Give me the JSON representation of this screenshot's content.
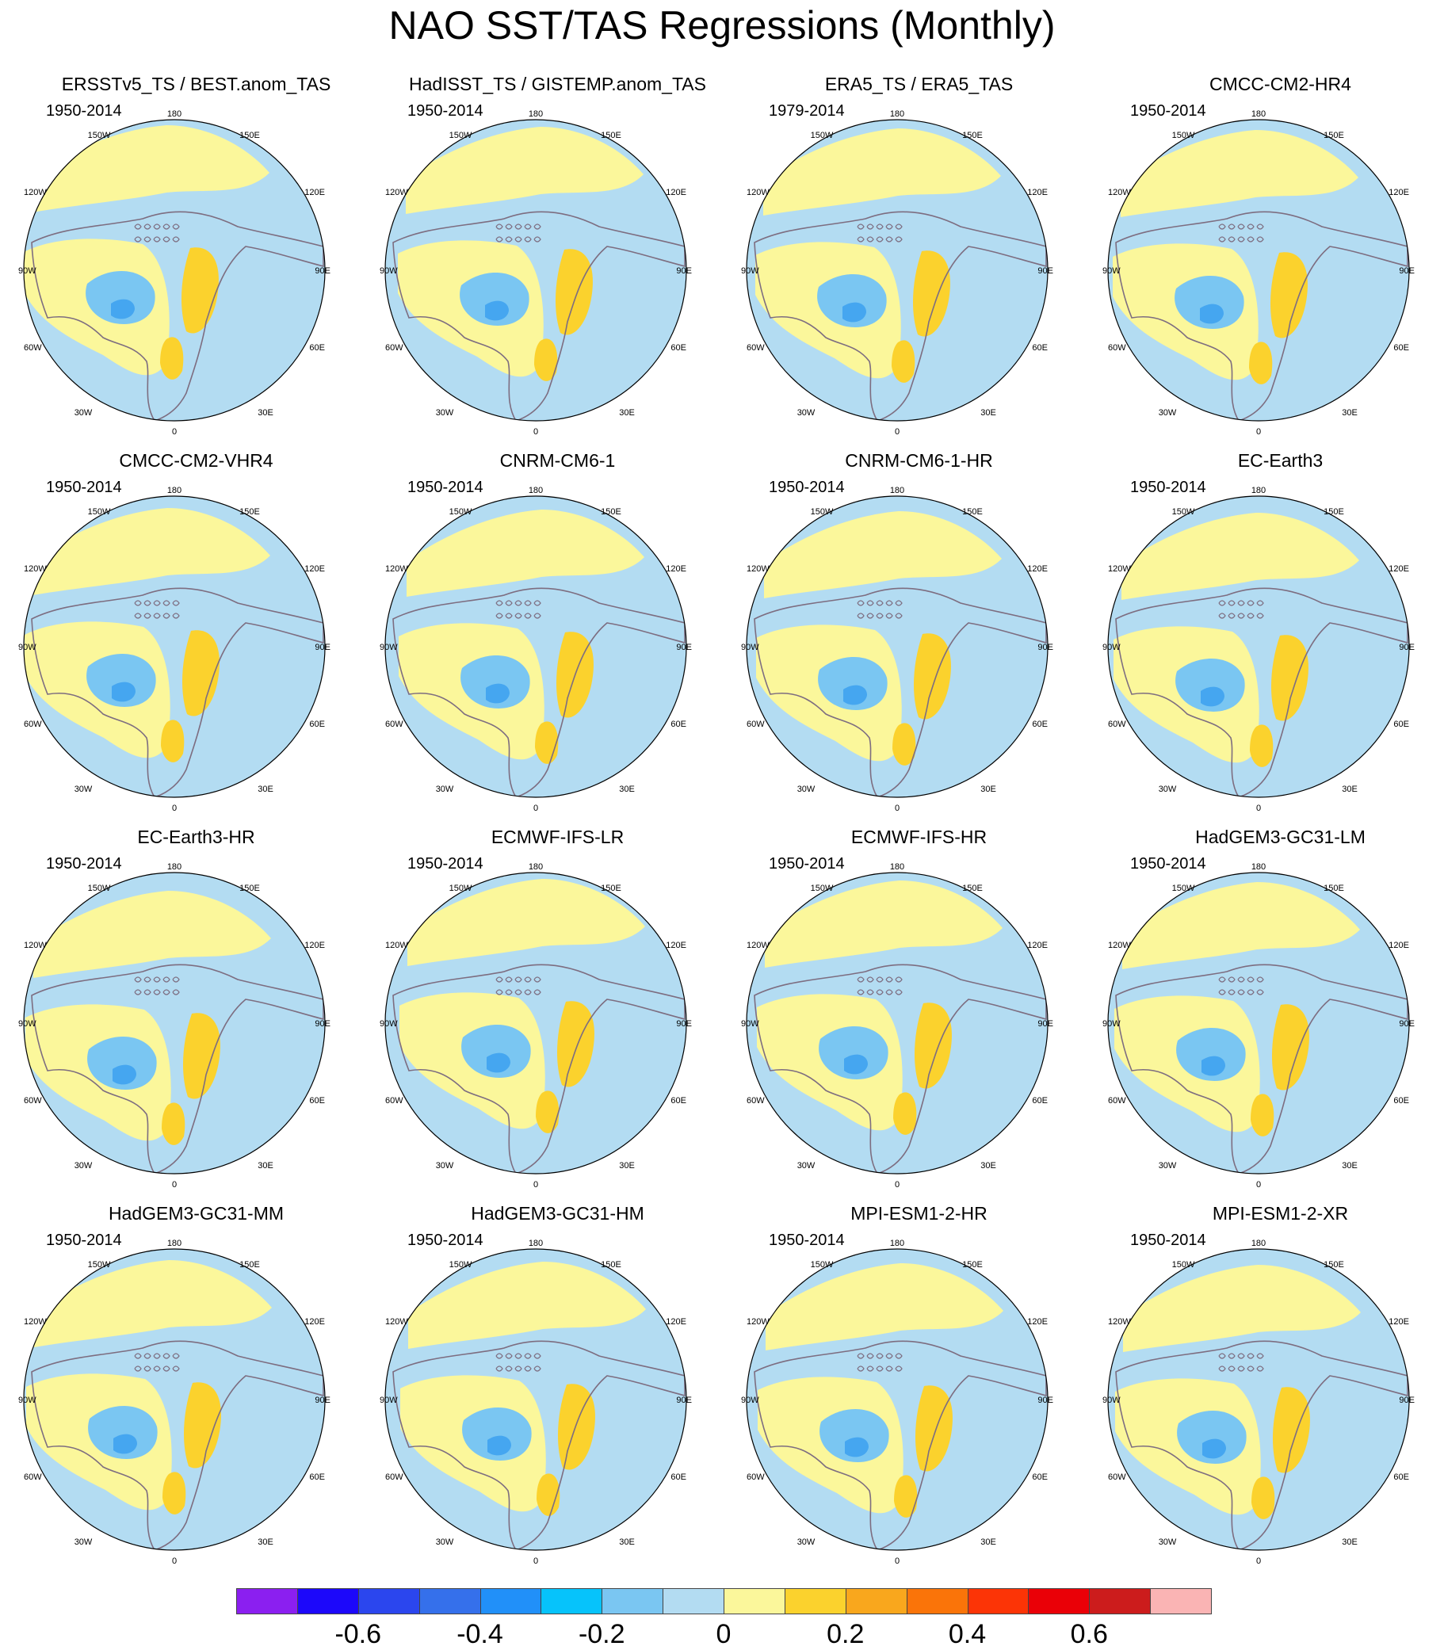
{
  "title": "NAO SST/TAS Regressions (Monthly)",
  "colors": {
    "neg_light": "#b3dcf2",
    "neg_mid": "#7ac6f2",
    "neg_strong": "#45a6f0",
    "pos_light": "#fbf79b",
    "pos_mid": "#fbd22d",
    "pos_strong": "#f9a71d",
    "land_outline": "#7d6d80"
  },
  "map_labels": {
    "top": "180",
    "bottom": "0",
    "left": "90W",
    "right": "90E",
    "upper_left_1": "150W",
    "upper_left_2": "120W",
    "upper_right_1": "150E",
    "upper_right_2": "120E",
    "lower_left_1": "60W",
    "lower_left_2": "30W",
    "lower_right_1": "60E",
    "lower_right_2": "30E"
  },
  "panels": [
    {
      "title": "ERSSTv5_TS / BEST.anom_TAS",
      "years": "1950-2014"
    },
    {
      "title": "HadISST_TS / GISTEMP.anom_TAS",
      "years": "1950-2014"
    },
    {
      "title": "ERA5_TS / ERA5_TAS",
      "years": "1979-2014"
    },
    {
      "title": "CMCC-CM2-HR4",
      "years": "1950-2014"
    },
    {
      "title": "CMCC-CM2-VHR4",
      "years": "1950-2014"
    },
    {
      "title": "CNRM-CM6-1",
      "years": "1950-2014"
    },
    {
      "title": "CNRM-CM6-1-HR",
      "years": "1950-2014"
    },
    {
      "title": "EC-Earth3",
      "years": "1950-2014"
    },
    {
      "title": "EC-Earth3-HR",
      "years": "1950-2014"
    },
    {
      "title": "ECMWF-IFS-LR",
      "years": "1950-2014"
    },
    {
      "title": "ECMWF-IFS-HR",
      "years": "1950-2014"
    },
    {
      "title": "HadGEM3-GC31-LM",
      "years": "1950-2014"
    },
    {
      "title": "HadGEM3-GC31-MM",
      "years": "1950-2014"
    },
    {
      "title": "HadGEM3-GC31-HM",
      "years": "1950-2014"
    },
    {
      "title": "MPI-ESM1-2-HR",
      "years": "1950-2014"
    },
    {
      "title": "MPI-ESM1-2-XR",
      "years": "1950-2014"
    }
  ],
  "colorbar": {
    "colors": [
      "#8b1ff0",
      "#1c08fa",
      "#2b46ee",
      "#3570eb",
      "#2190f9",
      "#06c3fb",
      "#7ac6f2",
      "#b3dcf2",
      "#fbf79b",
      "#fbd22d",
      "#f9a71d",
      "#fa7409",
      "#fc3406",
      "#ea0007",
      "#cc1c1c",
      "#fab4b4"
    ],
    "labels": [
      {
        "text": "-0.6",
        "boundary": 2
      },
      {
        "text": "-0.4",
        "boundary": 4
      },
      {
        "text": "-0.2",
        "boundary": 6
      },
      {
        "text": "0",
        "boundary": 8
      },
      {
        "text": "0.2",
        "boundary": 10
      },
      {
        "text": "0.4",
        "boundary": 12
      },
      {
        "text": "0.6",
        "boundary": 14
      }
    ]
  }
}
